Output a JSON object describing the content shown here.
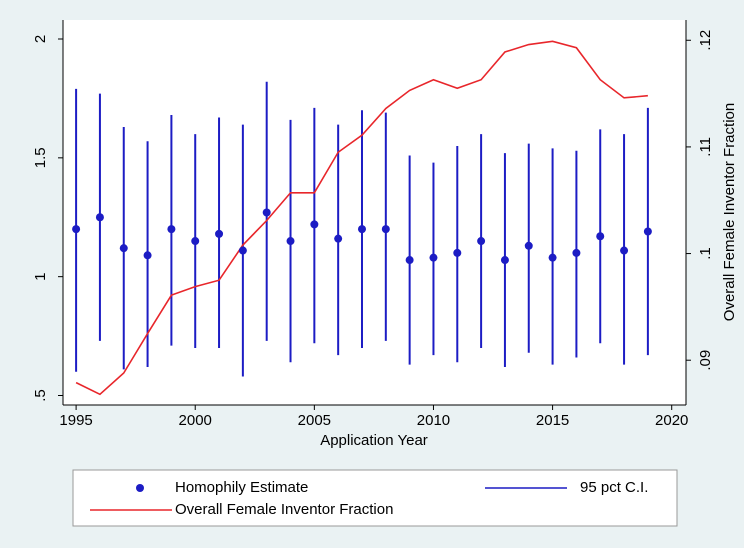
{
  "chart_data": {
    "type": "line",
    "xlabel": "Application Year",
    "y2label": "Overall Female Inventor Fraction",
    "x": [
      1995,
      1996,
      1997,
      1998,
      1999,
      2000,
      2001,
      2002,
      2003,
      2004,
      2005,
      2006,
      2007,
      2008,
      2009,
      2010,
      2011,
      2012,
      2013,
      2014,
      2015,
      2016,
      2017,
      2018,
      2019
    ],
    "xlim": [
      1994.45,
      2020.6
    ],
    "xticks": [
      1995,
      2000,
      2005,
      2010,
      2015,
      2020
    ],
    "ylim": [
      0.46,
      2.08
    ],
    "yticks": [
      {
        "value": 0.5,
        "label": ".5"
      },
      1,
      1.5,
      2
    ],
    "y2lim": [
      0.0858,
      0.1219
    ],
    "y2ticks": [
      {
        "value": 0.09,
        "label": ".09"
      },
      {
        "value": 0.1,
        "label": ".1"
      },
      {
        "value": 0.11,
        "label": ".11"
      },
      {
        "value": 0.12,
        "label": ".12"
      }
    ],
    "legend": "bottom",
    "series": [
      {
        "name": "Homophily Estimate",
        "type": "scatter",
        "color": "#1c1cc4",
        "values": [
          1.2,
          1.25,
          1.12,
          1.09,
          1.2,
          1.15,
          1.18,
          1.11,
          1.27,
          1.15,
          1.22,
          1.16,
          1.2,
          1.2,
          1.07,
          1.08,
          1.1,
          1.15,
          1.07,
          1.13,
          1.08,
          1.1,
          1.17,
          1.11,
          1.19
        ]
      },
      {
        "name": "95 pct C.I.",
        "type": "rspike",
        "color": "#1c1cc4",
        "low": [
          0.6,
          0.73,
          0.61,
          0.62,
          0.71,
          0.7,
          0.7,
          0.58,
          0.73,
          0.64,
          0.72,
          0.67,
          0.7,
          0.73,
          0.63,
          0.67,
          0.64,
          0.7,
          0.62,
          0.68,
          0.63,
          0.66,
          0.72,
          0.63,
          0.67
        ],
        "high": [
          1.79,
          1.77,
          1.63,
          1.57,
          1.68,
          1.6,
          1.67,
          1.64,
          1.82,
          1.66,
          1.71,
          1.64,
          1.7,
          1.69,
          1.51,
          1.48,
          1.55,
          1.6,
          1.52,
          1.56,
          1.54,
          1.53,
          1.62,
          1.6,
          1.71
        ]
      },
      {
        "name": "Overall Female Inventor Fraction",
        "type": "line",
        "axis": "y2",
        "color": "#e8262b",
        "values": [
          0.0879,
          0.0868,
          0.0888,
          0.0925,
          0.0961,
          0.0969,
          0.0975,
          0.1008,
          0.1031,
          0.1057,
          0.1057,
          0.1095,
          0.1111,
          0.1136,
          0.1153,
          0.1163,
          0.1155,
          0.1163,
          0.1189,
          0.1196,
          0.1199,
          0.1193,
          0.1163,
          0.1146,
          0.1148
        ]
      }
    ]
  }
}
